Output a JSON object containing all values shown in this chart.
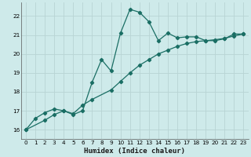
{
  "title": "",
  "xlabel": "Humidex (Indice chaleur)",
  "ylabel": "",
  "bg_color": "#ceeaea",
  "grid_color": "#b8d4d4",
  "line_color": "#1a6e64",
  "xlim": [
    -0.5,
    23.5
  ],
  "ylim": [
    15.5,
    22.7
  ],
  "xticks": [
    0,
    1,
    2,
    3,
    4,
    5,
    6,
    7,
    8,
    9,
    10,
    11,
    12,
    13,
    14,
    15,
    16,
    17,
    18,
    19,
    20,
    21,
    22,
    23
  ],
  "yticks": [
    16,
    17,
    18,
    19,
    20,
    21,
    22
  ],
  "series1_x": [
    0,
    1,
    2,
    3,
    4,
    5,
    6,
    7,
    8,
    9,
    10,
    11,
    12,
    13,
    14,
    15,
    16,
    17,
    18,
    19,
    20,
    21,
    22,
    23
  ],
  "series1_y": [
    16.0,
    16.6,
    16.9,
    17.1,
    17.0,
    16.8,
    17.0,
    18.5,
    19.7,
    19.1,
    21.1,
    22.35,
    22.2,
    21.7,
    20.7,
    21.1,
    20.85,
    20.9,
    20.9,
    20.7,
    20.7,
    20.8,
    21.05,
    21.05
  ],
  "series2_x": [
    0,
    2,
    3,
    4,
    5,
    6,
    7,
    9,
    10,
    11,
    12,
    13,
    14,
    15,
    16,
    17,
    18,
    19,
    20,
    21,
    22,
    23
  ],
  "series2_y": [
    16.0,
    16.5,
    16.8,
    17.0,
    16.85,
    17.3,
    17.6,
    18.1,
    18.55,
    19.0,
    19.4,
    19.7,
    20.0,
    20.2,
    20.4,
    20.55,
    20.65,
    20.7,
    20.75,
    20.82,
    20.95,
    21.05
  ]
}
